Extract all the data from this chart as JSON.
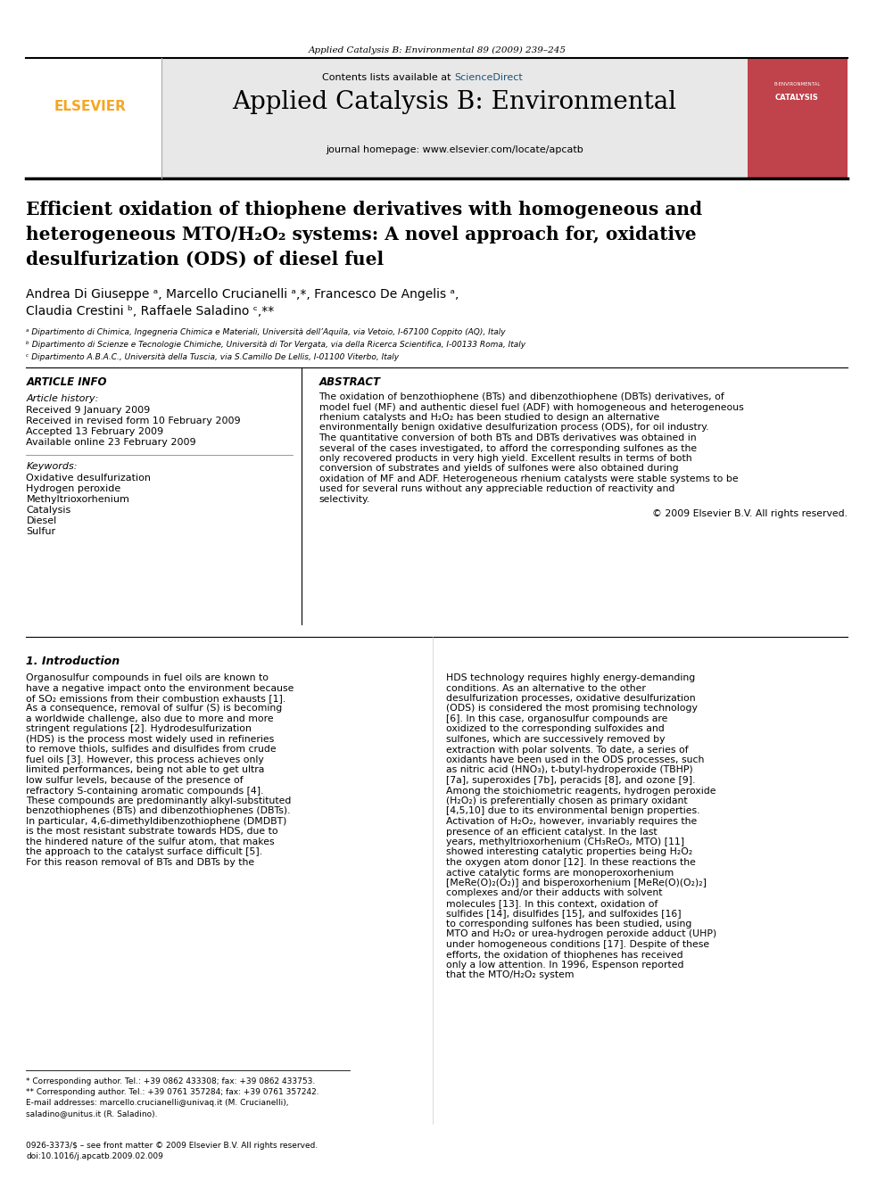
{
  "page_width": 9.92,
  "page_height": 13.23,
  "background_color": "#ffffff",
  "top_journal_ref": "Applied Catalysis B: Environmental 89 (2009) 239–245",
  "header_bg_color": "#e8e8e8",
  "journal_title": "Applied Catalysis B: Environmental",
  "contents_line": "Contents lists available at ScienceDirect",
  "sciencedirect_color": "#1a5276",
  "homepage_line": "journal homepage: www.elsevier.com/locate/apcatb",
  "elsevier_color": "#f5a623",
  "paper_title_line1": "Efficient oxidation of thiophene derivatives with homogeneous and",
  "paper_title_line2": "heterogeneous MTO/H₂O₂ systems: A novel approach for, oxidative",
  "paper_title_line3": "desulfurization (ODS) of diesel fuel",
  "authors_line1": "Andrea Di Giuseppe ᵃ, Marcello Crucianelli ᵃ,*, Francesco De Angelis ᵃ,",
  "authors_line2": "Claudia Crestini ᵇ, Raffaele Saladino ᶜ,**",
  "affil_a": "ᵃ Dipartimento di Chimica, Ingegneria Chimica e Materiali, Università dell’Aquila, via Vetoio, I-67100 Coppito (AQ), Italy",
  "affil_b": "ᵇ Dipartimento di Scienze e Tecnologie Chimiche, Università di Tor Vergata, via della Ricerca Scientifica, I-00133 Roma, Italy",
  "affil_c": "ᶜ Dipartimento A.B.A.C., Università della Tuscia, via S.Camillo De Lellis, I-01100 Viterbo, Italy",
  "article_info_header": "ARTICLE INFO",
  "article_history_label": "Article history:",
  "received_line": "Received 9 January 2009",
  "revised_line": "Received in revised form 10 February 2009",
  "accepted_line": "Accepted 13 February 2009",
  "available_line": "Available online 23 February 2009",
  "keywords_label": "Keywords:",
  "keywords": [
    "Oxidative desulfurization",
    "Hydrogen peroxide",
    "Methyltrioxorhenium",
    "Catalysis",
    "Diesel",
    "Sulfur"
  ],
  "abstract_header": "ABSTRACT",
  "abstract_text": "The oxidation of benzothiophene (BTs) and dibenzothiophene (DBTs) derivatives, of model fuel (MF) and authentic diesel fuel (ADF) with homogeneous and heterogeneous rhenium catalysts and H₂O₂ has been studied to design an alternative environmentally benign oxidative desulfurization process (ODS), for oil industry. The quantitative conversion of both BTs and DBTs derivatives was obtained in several of the cases investigated, to afford the corresponding sulfones as the only recovered products in very high yield. Excellent results in terms of both conversion of substrates and yields of sulfones were also obtained during oxidation of MF and ADF. Heterogeneous rhenium catalysts were stable systems to be used for several runs without any appreciable reduction of reactivity and selectivity.",
  "copyright_line": "© 2009 Elsevier B.V. All rights reserved.",
  "intro_header": "1. Introduction",
  "intro_col1_p1": "Organosulfur compounds in fuel oils are known to have a negative impact onto the environment because of SO₂ emissions from their combustion exhausts [1]. As a consequence, removal of sulfur (S) is becoming a worldwide challenge, also due to more and more stringent regulations [2]. Hydrodesulfurization (HDS) is the process most widely used in refineries to remove thiols, sulfides and disulfides from crude fuel oils [3]. However, this process achieves only limited performances, being not able to get ultra low sulfur levels, because of the presence of refractory S-containing aromatic compounds [4]. These compounds are predominantly alkyl-substituted benzothiophenes (BTs) and dibenzothiophenes (DBTs). In particular, 4,6-dimethyldibenzothiophene (DMDBT) is the most resistant substrate towards HDS, due to the hindered nature of the sulfur atom, that makes the approach to the catalyst surface difficult [5]. For this reason removal of BTs and DBTs by the",
  "intro_col2_p1": "HDS technology requires highly energy-demanding conditions. As an alternative to the other desulfurization processes, oxidative desulfurization (ODS) is considered the most promising technology [6]. In this case, organosulfur compounds are oxidized to the corresponding sulfoxides and sulfones, which are successively removed by extraction with polar solvents. To date, a series of oxidants have been used in the ODS processes, such as nitric acid (HNO₃), t-butyl-hydroperoxide (TBHP) [7a], superoxides [7b], peracids [8], and ozone [9]. Among the stoichiometric reagents, hydrogen peroxide (H₂O₂) is preferentially chosen as primary oxidant [4,5,10] due to its environmental benign properties. Activation of H₂O₂, however, invariably requires the presence of an efficient catalyst. In the last years, methyltrioxorhenium (CH₃ReO₃, MTO) [11] showed interesting catalytic properties being H₂O₂ the oxygen atom donor [12]. In these reactions the active catalytic forms are monoperoxorhenium [MeRe(O)₂(O₂)] and bisperoxorhenium [MeRe(O)(O₂)₂] complexes and/or their adducts with solvent molecules [13]. In this context, oxidation of sulfides [14], disulfides [15], and sulfoxides [16] to corresponding sulfones has been studied, using MTO and H₂O₂ or urea-hydrogen peroxide adduct (UHP) under homogeneous conditions [17]. Despite of these efforts, the oxidation of thiophenes has received only a low attention. In 1996, Espenson reported that the MTO/H₂O₂ system",
  "footnote1": "* Corresponding author. Tel.: +39 0862 433308; fax: +39 0862 433753.",
  "footnote2": "** Corresponding author. Tel.: +39 0761 357284; fax: +39 0761 357242.",
  "footnote3": "E-mail addresses: marcello.crucianelli@univaq.it (M. Crucianelli),",
  "footnote4": "saladino@unitus.it (R. Saladino).",
  "issn_line": "0926-3373/$ – see front matter © 2009 Elsevier B.V. All rights reserved.",
  "doi_line": "doi:10.1016/j.apcatb.2009.02.009"
}
